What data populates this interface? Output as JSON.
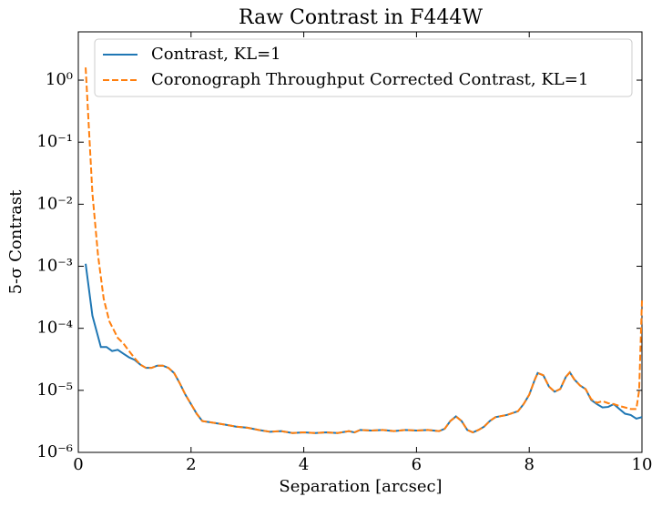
{
  "chart_data": {
    "type": "line",
    "title": "Raw Contrast in F444W",
    "xlabel": "Separation [arcsec]",
    "ylabel": "5-σ Contrast",
    "xlim": [
      0,
      10
    ],
    "xticks": [
      0,
      2,
      4,
      6,
      8,
      10
    ],
    "ylim": [
      1e-06,
      6
    ],
    "yscale": "log",
    "yticks": [
      {
        "value": 1e-06,
        "label": "10⁻⁶"
      },
      {
        "value": 1e-05,
        "label": "10⁻⁵"
      },
      {
        "value": 0.0001,
        "label": "10⁻⁴"
      },
      {
        "value": 0.001,
        "label": "10⁻³"
      },
      {
        "value": 0.01,
        "label": "10⁻²"
      },
      {
        "value": 0.1,
        "label": "10⁻¹"
      },
      {
        "value": 1,
        "label": "10⁰"
      }
    ],
    "legend": "upper left",
    "series": [
      {
        "name": "Contrast, KL=1",
        "color": "#1f77b4",
        "linestyle": "solid",
        "x": [
          0.13,
          0.25,
          0.4,
          0.5,
          0.6,
          0.7,
          0.8,
          0.9,
          1.0,
          1.1,
          1.2,
          1.3,
          1.4,
          1.5,
          1.6,
          1.7,
          1.8,
          1.9,
          2.0,
          2.1,
          2.2,
          2.4,
          2.6,
          2.8,
          3.0,
          3.2,
          3.4,
          3.6,
          3.8,
          4.0,
          4.2,
          4.4,
          4.6,
          4.8,
          4.9,
          5.0,
          5.2,
          5.4,
          5.6,
          5.8,
          6.0,
          6.2,
          6.4,
          6.5,
          6.6,
          6.7,
          6.8,
          6.9,
          7.0,
          7.1,
          7.2,
          7.3,
          7.4,
          7.6,
          7.8,
          7.9,
          8.0,
          8.1,
          8.15,
          8.25,
          8.35,
          8.45,
          8.55,
          8.65,
          8.72,
          8.8,
          8.9,
          9.0,
          9.1,
          9.2,
          9.3,
          9.4,
          9.5,
          9.6,
          9.7,
          9.8,
          9.9,
          10.0
        ],
        "values": [
          0.0011,
          0.00016,
          5e-05,
          5e-05,
          4.3e-05,
          4.5e-05,
          3.9e-05,
          3.4e-05,
          3.1e-05,
          2.6e-05,
          2.3e-05,
          2.3e-05,
          2.5e-05,
          2.5e-05,
          2.3e-05,
          1.9e-05,
          1.3e-05,
          8.5e-06,
          6e-06,
          4.2e-06,
          3.2e-06,
          3e-06,
          2.8e-06,
          2.6e-06,
          2.5e-06,
          2.3e-06,
          2.15e-06,
          2.2e-06,
          2.05e-06,
          2.1e-06,
          2.05e-06,
          2.1e-06,
          2.05e-06,
          2.2e-06,
          2.1e-06,
          2.3e-06,
          2.25e-06,
          2.3e-06,
          2.2e-06,
          2.3e-06,
          2.25e-06,
          2.3e-06,
          2.2e-06,
          2.4e-06,
          3.2e-06,
          3.8e-06,
          3.2e-06,
          2.3e-06,
          2.1e-06,
          2.3e-06,
          2.6e-06,
          3.2e-06,
          3.7e-06,
          4e-06,
          4.6e-06,
          6e-06,
          8.5e-06,
          1.5e-05,
          1.9e-05,
          1.75e-05,
          1.15e-05,
          9.5e-06,
          1.05e-05,
          1.65e-05,
          1.95e-05,
          1.5e-05,
          1.2e-05,
          1.05e-05,
          7e-06,
          6e-06,
          5.3e-06,
          5.4e-06,
          6e-06,
          5e-06,
          4.2e-06,
          4e-06,
          3.5e-06,
          3.7e-06
        ]
      },
      {
        "name": "Coronograph Throughput Corrected Contrast, KL=1",
        "color": "#ff7f0e",
        "linestyle": "dashed",
        "x": [
          0.13,
          0.25,
          0.35,
          0.45,
          0.55,
          0.7,
          0.8,
          0.9,
          1.0,
          1.1,
          1.2,
          1.3,
          1.4,
          1.5,
          1.6,
          1.7,
          1.8,
          1.9,
          2.0,
          2.1,
          2.2,
          2.4,
          2.6,
          2.8,
          3.0,
          3.2,
          3.4,
          3.6,
          3.8,
          4.0,
          4.2,
          4.4,
          4.6,
          4.8,
          4.9,
          5.0,
          5.2,
          5.4,
          5.6,
          5.8,
          6.0,
          6.2,
          6.4,
          6.5,
          6.6,
          6.7,
          6.8,
          6.9,
          7.0,
          7.1,
          7.2,
          7.3,
          7.4,
          7.6,
          7.8,
          7.9,
          8.0,
          8.1,
          8.15,
          8.25,
          8.35,
          8.45,
          8.55,
          8.65,
          8.72,
          8.8,
          8.9,
          9.0,
          9.1,
          9.2,
          9.3,
          9.4,
          9.5,
          9.6,
          9.7,
          9.8,
          9.9,
          9.95,
          10.0
        ],
        "values": [
          1.6,
          0.015,
          0.0015,
          0.0003,
          0.00013,
          7e-05,
          5.7e-05,
          4.3e-05,
          3.3e-05,
          2.6e-05,
          2.3e-05,
          2.3e-05,
          2.5e-05,
          2.5e-05,
          2.3e-05,
          1.9e-05,
          1.3e-05,
          8.5e-06,
          6e-06,
          4.2e-06,
          3.2e-06,
          3e-06,
          2.8e-06,
          2.6e-06,
          2.5e-06,
          2.3e-06,
          2.15e-06,
          2.2e-06,
          2.05e-06,
          2.1e-06,
          2.05e-06,
          2.1e-06,
          2.05e-06,
          2.2e-06,
          2.1e-06,
          2.3e-06,
          2.25e-06,
          2.3e-06,
          2.2e-06,
          2.3e-06,
          2.25e-06,
          2.3e-06,
          2.2e-06,
          2.4e-06,
          3.2e-06,
          3.8e-06,
          3.2e-06,
          2.3e-06,
          2.1e-06,
          2.3e-06,
          2.6e-06,
          3.2e-06,
          3.7e-06,
          4e-06,
          4.6e-06,
          6e-06,
          8.5e-06,
          1.5e-05,
          1.9e-05,
          1.75e-05,
          1.15e-05,
          9.5e-06,
          1.05e-05,
          1.65e-05,
          1.95e-05,
          1.5e-05,
          1.2e-05,
          1.05e-05,
          7.2e-06,
          6.3e-06,
          6.7e-06,
          6.2e-06,
          6e-06,
          5.6e-06,
          5.3e-06,
          5e-06,
          5e-06,
          1e-05,
          0.00028
        ]
      }
    ]
  }
}
